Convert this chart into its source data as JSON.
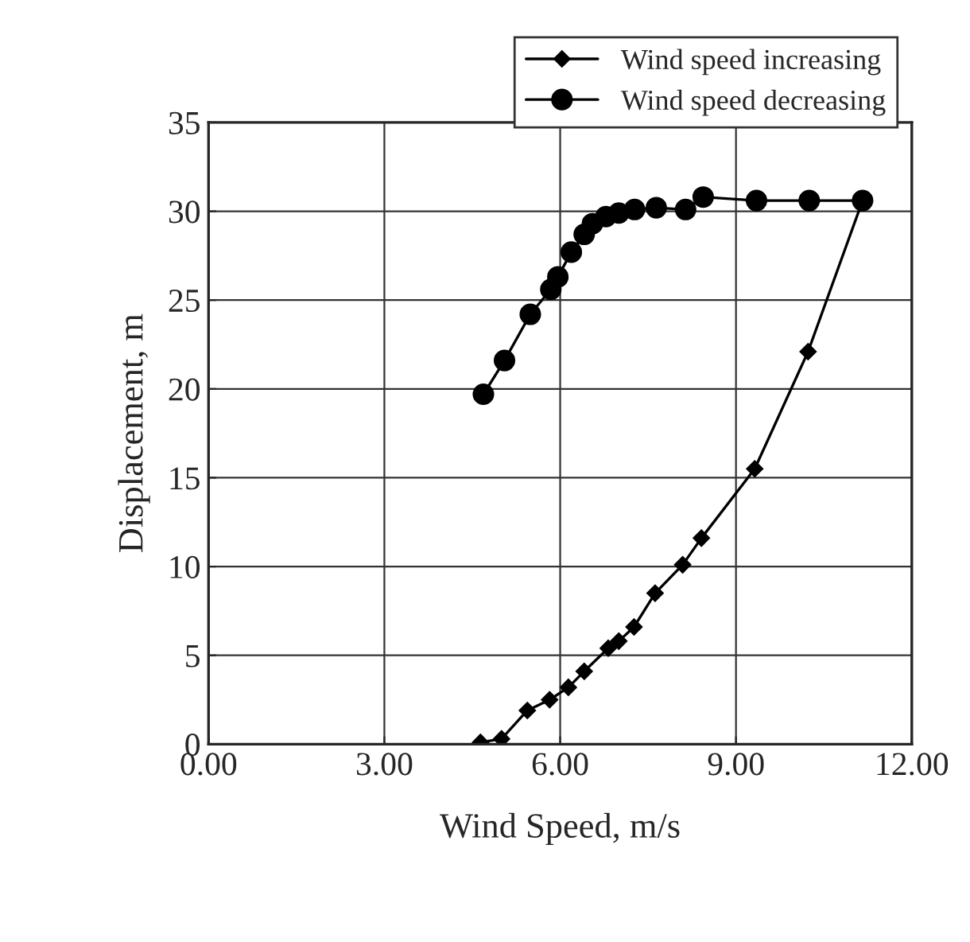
{
  "chart_data": {
    "type": "line",
    "xlabel": "Wind Speed, m/s",
    "ylabel": "Displacement, m",
    "xlim": [
      0,
      12
    ],
    "xticks": [
      {
        "value": 0,
        "label": "0.00"
      },
      {
        "value": 3,
        "label": "3.00"
      },
      {
        "value": 6,
        "label": "6.00"
      },
      {
        "value": 9,
        "label": "9.00"
      },
      {
        "value": 12,
        "label": "12.00"
      }
    ],
    "ylim": [
      0,
      35
    ],
    "yticks": [
      0,
      5,
      10,
      15,
      20,
      25,
      30,
      35
    ],
    "grid": true,
    "legend": "top right",
    "series": [
      {
        "name": "Wind speed increasing",
        "color": "#000000",
        "marker": "diamond",
        "x": [
          4.64,
          5.0,
          5.44,
          5.82,
          6.14,
          6.41,
          6.82,
          7.0,
          7.26,
          7.62,
          8.09,
          8.41,
          9.32,
          10.23,
          11.16
        ],
        "values": [
          0.1,
          0.3,
          1.9,
          2.5,
          3.2,
          4.1,
          5.4,
          5.8,
          6.6,
          8.5,
          10.1,
          11.6,
          15.5,
          22.1,
          30.6
        ]
      },
      {
        "name": "Wind speed decreasing",
        "color": "#000000",
        "marker": "circle",
        "x": [
          4.69,
          5.05,
          5.49,
          5.84,
          5.96,
          6.19,
          6.41,
          6.55,
          6.78,
          7.0,
          7.27,
          7.64,
          8.14,
          8.44,
          9.35,
          10.25,
          11.16
        ],
        "values": [
          19.7,
          21.6,
          24.2,
          25.6,
          26.3,
          27.7,
          28.7,
          29.3,
          29.7,
          29.9,
          30.1,
          30.2,
          30.1,
          30.8,
          30.6,
          30.6,
          30.6
        ]
      }
    ]
  }
}
